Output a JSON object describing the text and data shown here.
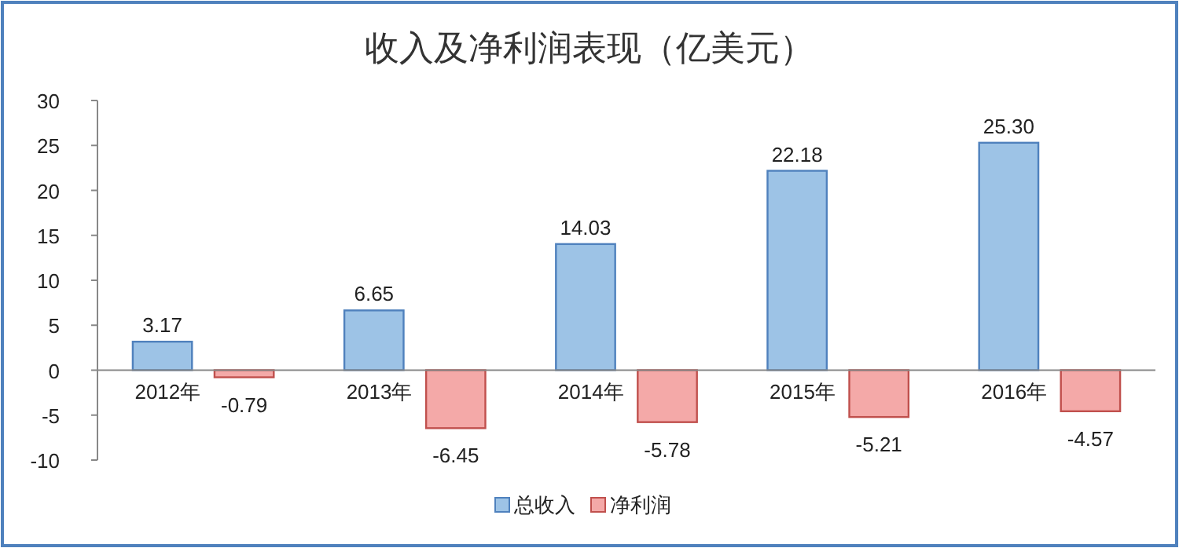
{
  "chart_data": {
    "type": "bar",
    "title": "收入及净利润表现（亿美元）",
    "categories": [
      "2012年",
      "2013年",
      "2014年",
      "2015年",
      "2016年"
    ],
    "series": [
      {
        "name": "总收入",
        "color": "#9dc3e6",
        "values": [
          3.17,
          6.65,
          14.03,
          22.18,
          25.3
        ],
        "value_labels": [
          "3.17",
          "6.65",
          "14.03",
          "22.18",
          "25.30"
        ]
      },
      {
        "name": "净利润",
        "color": "#f4a9a8",
        "values": [
          -0.79,
          -6.45,
          -5.78,
          -5.21,
          -4.57
        ],
        "value_labels": [
          "-0.79",
          "-6.45",
          "-5.78",
          "-5.21",
          "-4.57"
        ]
      }
    ],
    "ylim": [
      -10,
      30
    ],
    "yticks": [
      -10,
      -5,
      0,
      5,
      10,
      15,
      20,
      25,
      30
    ],
    "legend": "bottom"
  }
}
